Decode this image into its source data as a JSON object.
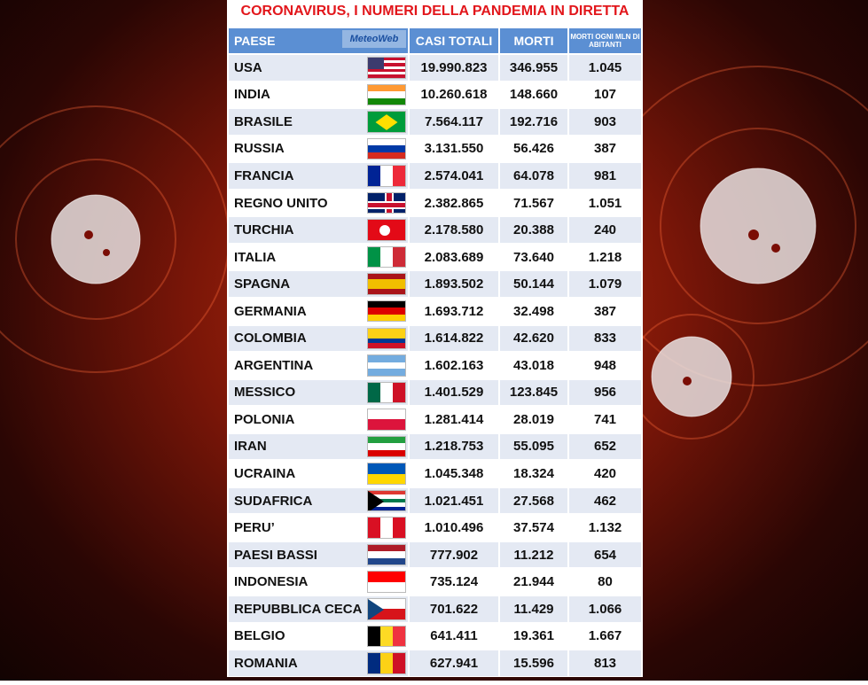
{
  "title": "CORONAVIRUS, I NUMERI DELLA PANDEMIA IN DIRETTA",
  "logo": "MeteoWeb",
  "table": {
    "columns": [
      "PAESE",
      "CASI TOTALI",
      "MORTI",
      "MORTI OGNI MLN DI ABITANTI"
    ],
    "rows": [
      [
        "USA",
        "19.990.823",
        "346.955",
        "1.045"
      ],
      [
        "INDIA",
        "10.260.618",
        "148.660",
        "107"
      ],
      [
        "BRASILE",
        "7.564.117",
        "192.716",
        "903"
      ],
      [
        "RUSSIA",
        "3.131.550",
        "56.426",
        "387"
      ],
      [
        "FRANCIA",
        "2.574.041",
        "64.078",
        "981"
      ],
      [
        "REGNO UNITO",
        "2.382.865",
        "71.567",
        "1.051"
      ],
      [
        "TURCHIA",
        "2.178.580",
        "20.388",
        "240"
      ],
      [
        "ITALIA",
        "2.083.689",
        "73.640",
        "1.218"
      ],
      [
        "SPAGNA",
        "1.893.502",
        "50.144",
        "1.079"
      ],
      [
        "GERMANIA",
        "1.693.712",
        "32.498",
        "387"
      ],
      [
        "COLOMBIA",
        "1.614.822",
        "42.620",
        "833"
      ],
      [
        "ARGENTINA",
        "1.602.163",
        "43.018",
        "948"
      ],
      [
        "MESSICO",
        "1.401.529",
        "123.845",
        "956"
      ],
      [
        "POLONIA",
        "1.281.414",
        "28.019",
        "741"
      ],
      [
        "IRAN",
        "1.218.753",
        "55.095",
        "652"
      ],
      [
        "UCRAINA",
        "1.045.348",
        "18.324",
        "420"
      ],
      [
        "SUDAFRICA",
        "1.021.451",
        "27.568",
        "462"
      ],
      [
        "PERU’",
        "1.010.496",
        "37.574",
        "1.132"
      ],
      [
        "PAESI BASSI",
        "777.902",
        "11.212",
        "654"
      ],
      [
        "INDONESIA",
        "735.124",
        "21.944",
        "80"
      ],
      [
        "REPUBBLICA CECA",
        "701.622",
        "11.429",
        "1.066"
      ],
      [
        "BELGIO",
        "641.411",
        "19.361",
        "1.667"
      ],
      [
        "ROMANIA",
        "627.941",
        "15.596",
        "813"
      ]
    ]
  }
}
